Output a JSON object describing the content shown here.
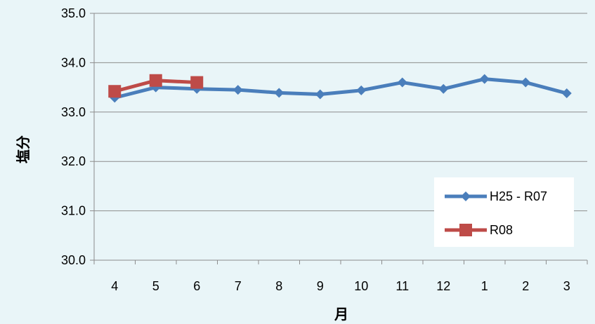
{
  "chart_data": {
    "type": "line",
    "title": "",
    "xlabel": "月",
    "ylabel": "塩分",
    "categories": [
      "4",
      "5",
      "6",
      "7",
      "8",
      "9",
      "10",
      "11",
      "12",
      "1",
      "2",
      "3"
    ],
    "ylim": [
      30.0,
      35.0
    ],
    "yticks": [
      "30.0",
      "31.0",
      "32.0",
      "33.0",
      "34.0",
      "35.0"
    ],
    "grid": true,
    "legend_position": "bottom-right",
    "series": [
      {
        "name": "H25 - R07",
        "color": "#4a7ebb",
        "marker": "diamond",
        "values": [
          33.29,
          33.5,
          33.47,
          33.45,
          33.39,
          33.36,
          33.44,
          33.6,
          33.47,
          33.67,
          33.6,
          33.38
        ]
      },
      {
        "name": "R08",
        "color": "#be4b48",
        "marker": "square",
        "values": [
          33.42,
          33.64,
          33.6,
          null,
          null,
          null,
          null,
          null,
          null,
          null,
          null,
          null
        ]
      }
    ]
  }
}
